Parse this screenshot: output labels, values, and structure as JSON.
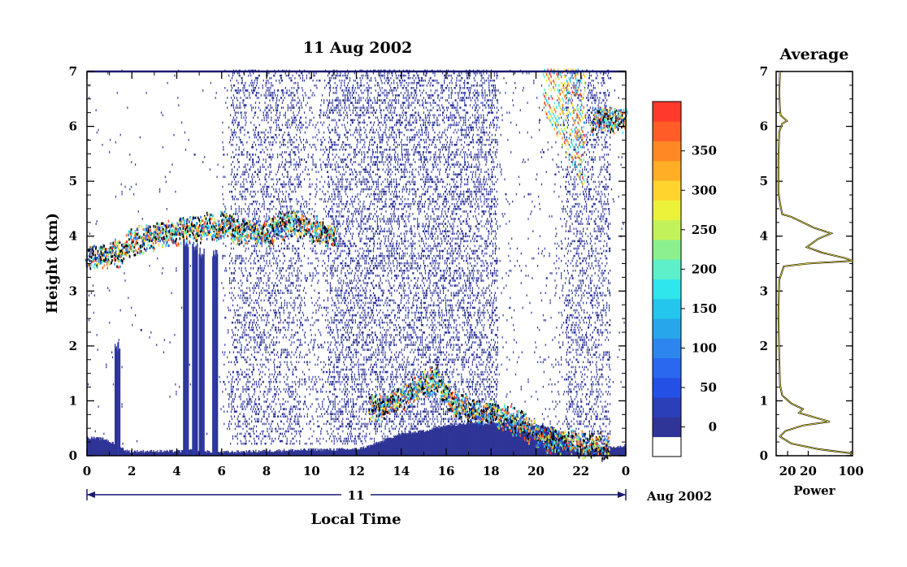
{
  "chart_data": [
    {
      "type": "heatmap",
      "title": "11 Aug 2002",
      "xlabel": "Local Time",
      "ylabel": "Height (km)",
      "x_ticks": [
        "0",
        "2",
        "4",
        "6",
        "8",
        "10",
        "12",
        "14",
        "16",
        "18",
        "20",
        "22",
        "0"
      ],
      "y_ticks": [
        "0",
        "1",
        "2",
        "3",
        "4",
        "5",
        "6",
        "7"
      ],
      "xlim": [
        0,
        24
      ],
      "ylim": [
        0,
        7
      ],
      "date_bar": {
        "day": "11",
        "month_year": "Aug 2002"
      },
      "colorbar": {
        "labels": [
          "0",
          "50",
          "100",
          "150",
          "200",
          "250",
          "300",
          "350"
        ],
        "colors": [
          "#ffffff",
          "#2f3596",
          "#2b3fb8",
          "#2550e6",
          "#2a68f0",
          "#2c86ee",
          "#28a6ec",
          "#24c6ee",
          "#2fe6ec",
          "#5ef0c8",
          "#8cf08e",
          "#c2f25a",
          "#ecf23a",
          "#ffd42c",
          "#ffae26",
          "#ff8824",
          "#ff5c28",
          "#ff3a2a"
        ]
      },
      "features": {
        "surface_layer": [
          [
            0,
            0.33
          ],
          [
            0.8,
            0.3
          ],
          [
            1.8,
            0.08
          ],
          [
            4.3,
            0.08
          ],
          [
            4.5,
            0.1
          ],
          [
            5.8,
            0.06
          ],
          [
            9,
            0.1
          ],
          [
            12,
            0.12
          ],
          [
            12.6,
            0.18
          ],
          [
            14,
            0.4
          ],
          [
            15,
            0.45
          ],
          [
            16,
            0.55
          ],
          [
            17,
            0.6
          ],
          [
            18,
            0.6
          ],
          [
            19,
            0.62
          ],
          [
            20,
            0.55
          ],
          [
            20.8,
            0.5
          ],
          [
            21.5,
            0.2
          ],
          [
            22,
            0.12
          ],
          [
            24,
            0.18
          ]
        ],
        "cloud_layer_top": [
          [
            0,
            3.6
          ],
          [
            1.4,
            3.7
          ],
          [
            2,
            3.9
          ],
          [
            3,
            4.0
          ],
          [
            4,
            4.1
          ],
          [
            5,
            4.15
          ],
          [
            6,
            4.2
          ],
          [
            7,
            4.1
          ],
          [
            8,
            4.05
          ],
          [
            9,
            4.25
          ],
          [
            9.3,
            4.25
          ],
          [
            10.8,
            4.05
          ],
          [
            11.1,
            4.05
          ],
          [
            12.6,
            0.9
          ],
          [
            13,
            0.85
          ],
          [
            14.5,
            1.2
          ],
          [
            15.5,
            1.4
          ],
          [
            16.5,
            0.9
          ],
          [
            17.5,
            0.8
          ],
          [
            19,
            0.65
          ],
          [
            20.5,
            0.3
          ],
          [
            23.2,
            0.15
          ],
          [
            22.5,
            6.05
          ],
          [
            23,
            6.15
          ],
          [
            24,
            6.1
          ]
        ],
        "fall_streaks": [
          [
            1.35,
            2.0
          ],
          [
            4.4,
            3.9
          ],
          [
            4.8,
            3.8
          ],
          [
            5.1,
            3.7
          ],
          [
            5.7,
            3.7
          ]
        ]
      }
    },
    {
      "type": "line",
      "title": "Average",
      "xlabel": "Power",
      "ylabel": "",
      "x_ticks": [
        "20",
        "20",
        "100"
      ],
      "y_ticks": [
        "0",
        "1",
        "2",
        "3",
        "4",
        "5",
        "6",
        "7"
      ],
      "ylim": [
        0,
        7
      ],
      "xlim": [
        0,
        1
      ],
      "series": [
        {
          "points": [
            [
              0.05,
              7
            ],
            [
              0.04,
              6.6
            ],
            [
              0.05,
              6.3
            ],
            [
              0.06,
              6.2
            ],
            [
              0.14,
              6.1
            ],
            [
              0.08,
              6.05
            ],
            [
              0.04,
              5.9
            ],
            [
              0.03,
              5.4
            ],
            [
              0.03,
              4.8
            ],
            [
              0.05,
              4.6
            ],
            [
              0.08,
              4.4
            ],
            [
              0.2,
              4.35
            ],
            [
              0.35,
              4.25
            ],
            [
              0.5,
              4.15
            ],
            [
              0.72,
              4.05
            ],
            [
              0.55,
              3.95
            ],
            [
              0.45,
              3.85
            ],
            [
              0.4,
              3.8
            ],
            [
              0.6,
              3.7
            ],
            [
              0.9,
              3.6
            ],
            [
              1.0,
              3.55
            ],
            [
              0.4,
              3.5
            ],
            [
              0.1,
              3.45
            ],
            [
              0.04,
              3.2
            ],
            [
              0.03,
              2.6
            ],
            [
              0.04,
              1.8
            ],
            [
              0.05,
              1.3
            ],
            [
              0.08,
              1.1
            ],
            [
              0.2,
              0.95
            ],
            [
              0.35,
              0.85
            ],
            [
              0.3,
              0.78
            ],
            [
              0.55,
              0.68
            ],
            [
              0.7,
              0.62
            ],
            [
              0.35,
              0.55
            ],
            [
              0.12,
              0.45
            ],
            [
              0.05,
              0.35
            ],
            [
              0.2,
              0.22
            ],
            [
              0.55,
              0.12
            ],
            [
              0.95,
              0.05
            ],
            [
              1.0,
              0.02
            ]
          ]
        }
      ]
    }
  ]
}
